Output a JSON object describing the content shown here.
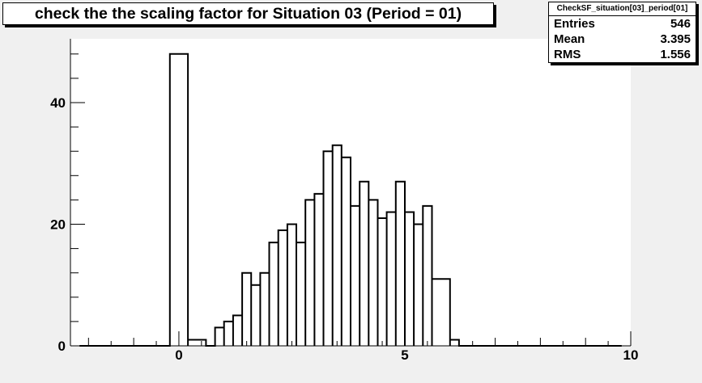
{
  "title": "check the the scaling factor for Situation 03 (Period = 01)",
  "stats": {
    "name": "CheckSF_situation[03]_period[01]",
    "rows": [
      {
        "label": "Entries",
        "value": "546"
      },
      {
        "label": "Mean",
        "value": "3.395"
      },
      {
        "label": "RMS",
        "value": "1.556"
      }
    ]
  },
  "chart_data": {
    "type": "bar",
    "histogram": true,
    "xlim": [
      -2.4,
      10
    ],
    "ylim": [
      0,
      50.5
    ],
    "bin_width": 0.2,
    "bins_start": -2.2,
    "bins_end": 9.8,
    "x_ticks": [
      0,
      5,
      10
    ],
    "x_tick_labels": [
      "0",
      "5",
      "10"
    ],
    "y_ticks": [
      0,
      20,
      40
    ],
    "y_tick_labels": [
      "0",
      "20",
      "40"
    ],
    "series": [
      {
        "bin_low_edges": [
          -0.2,
          0.2,
          0.6,
          0.8,
          1.0,
          1.2,
          1.4,
          1.6,
          1.8,
          2.0,
          2.2,
          2.4,
          2.6,
          2.8,
          3.0,
          3.2,
          3.4,
          3.6,
          3.8,
          4.0,
          4.2,
          4.4,
          4.6,
          4.8,
          5.0,
          5.2,
          5.4,
          5.6,
          6.0,
          6.2
        ],
        "bin_high_edges": [
          0.2,
          0.6,
          0.8,
          1.0,
          1.2,
          1.4,
          1.6,
          1.8,
          2.0,
          2.2,
          2.4,
          2.6,
          2.8,
          3.0,
          3.2,
          3.4,
          3.6,
          3.8,
          4.0,
          4.2,
          4.4,
          4.6,
          4.8,
          5.0,
          5.2,
          5.4,
          5.6,
          6.0,
          6.2,
          6.4
        ],
        "values": [
          48,
          1,
          0,
          3,
          4,
          5,
          12,
          10,
          12,
          17,
          19,
          20,
          17,
          24,
          25,
          32,
          33,
          31,
          23,
          27,
          24,
          21,
          22,
          27,
          22,
          20,
          23,
          11,
          1,
          0
        ]
      }
    ]
  }
}
